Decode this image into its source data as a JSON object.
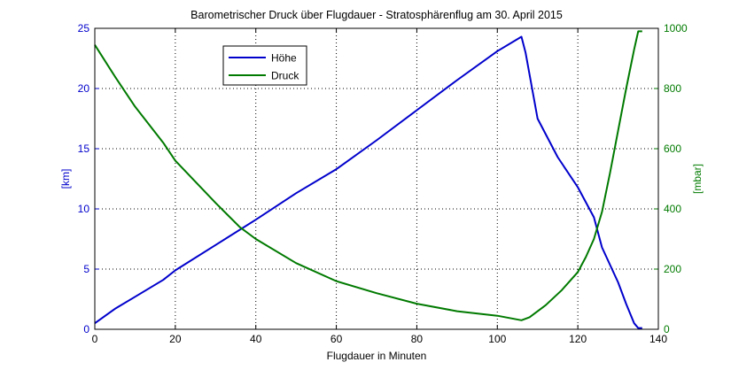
{
  "chart_data": {
    "type": "line",
    "title": "Barometrischer Druck über Flugdauer - Stratosphärenflug am 30. April 2015",
    "xlabel": "Flugdauer in Minuten",
    "xlim": [
      0,
      140
    ],
    "xticks": [
      0,
      20,
      40,
      60,
      80,
      100,
      120,
      140
    ],
    "grid": true,
    "legend_position": "top-left",
    "y_left": {
      "label": "[km]",
      "lim": [
        0,
        25
      ],
      "ticks": [
        0,
        5,
        10,
        15,
        20,
        25
      ],
      "color": "#0000cc"
    },
    "y_right": {
      "label": "[mbar]",
      "lim": [
        0,
        1000
      ],
      "ticks": [
        0,
        200,
        400,
        600,
        800,
        1000
      ],
      "color": "#007a00"
    },
    "series": [
      {
        "name": "Höhe",
        "axis": "left",
        "color": "#0000cc",
        "x": [
          0,
          5,
          10,
          17,
          20,
          30,
          40,
          50,
          60,
          70,
          80,
          90,
          100,
          106,
          107,
          110,
          115,
          120,
          124,
          126,
          130,
          132,
          134,
          135,
          136
        ],
        "y": [
          0.5,
          1.7,
          2.7,
          4.1,
          4.9,
          7.0,
          9.1,
          11.3,
          13.3,
          15.7,
          18.2,
          20.7,
          23.1,
          24.3,
          23.0,
          17.5,
          14.3,
          11.8,
          9.3,
          6.8,
          3.9,
          2.1,
          0.5,
          0.1,
          0.1
        ]
      },
      {
        "name": "Druck",
        "axis": "right",
        "color": "#007a00",
        "x": [
          0,
          5,
          10,
          17,
          20,
          30,
          36,
          40,
          50,
          60,
          70,
          80,
          90,
          100,
          106,
          108,
          112,
          116,
          120,
          122,
          124,
          126,
          128,
          130,
          132,
          134,
          135,
          136
        ],
        "y": [
          945,
          840,
          740,
          620,
          560,
          420,
          340,
          300,
          220,
          160,
          120,
          85,
          60,
          45,
          30,
          40,
          80,
          130,
          190,
          240,
          300,
          390,
          520,
          660,
          800,
          930,
          990,
          990
        ]
      }
    ]
  }
}
